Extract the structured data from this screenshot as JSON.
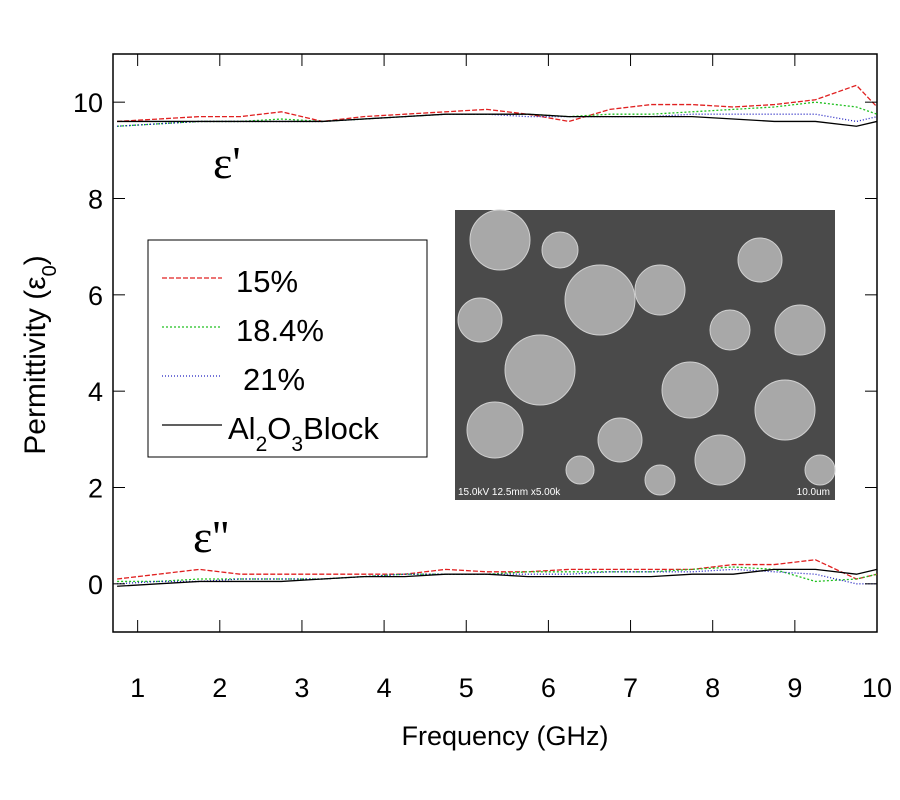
{
  "chart_data": {
    "type": "line",
    "x_label": "Frequency (GHz)",
    "y_label": {
      "main": "Permittivity (ε",
      "sub": "0",
      "end": ")"
    },
    "annotations": {
      "real": "ε'",
      "imag": "ε''"
    },
    "inset": {
      "caption": "15.0kV 12.5mm x5.00k",
      "scale": "10.0um"
    },
    "xlim": [
      0.7,
      10
    ],
    "xticks": [
      1,
      2,
      3,
      4,
      5,
      6,
      7,
      8,
      9,
      10
    ],
    "ylim": [
      -1,
      11
    ],
    "yticks": [
      0,
      2,
      4,
      6,
      8,
      10
    ],
    "x": [
      0.75,
      1.25,
      1.75,
      2.25,
      2.75,
      3.25,
      3.75,
      4.25,
      4.75,
      5.25,
      5.75,
      6.25,
      6.75,
      7.25,
      7.75,
      8.25,
      8.75,
      9.25,
      9.75,
      10
    ],
    "series": [
      {
        "name": "15%",
        "color": "#e02020",
        "dash": "5 2",
        "values": [
          9.6,
          9.65,
          9.7,
          9.7,
          9.8,
          9.6,
          9.7,
          9.75,
          9.8,
          9.85,
          9.75,
          9.6,
          9.85,
          9.95,
          9.95,
          9.9,
          9.95,
          10.05,
          10.35,
          9.9
        ],
        "loss_values": [
          0.1,
          0.2,
          0.3,
          0.2,
          0.2,
          0.2,
          0.2,
          0.2,
          0.3,
          0.25,
          0.25,
          0.3,
          0.3,
          0.3,
          0.3,
          0.4,
          0.4,
          0.5,
          0.1,
          0.2
        ]
      },
      {
        "name": "18.4%",
        "color": "#20c020",
        "dash": "2 2",
        "values": [
          9.5,
          9.55,
          9.6,
          9.6,
          9.65,
          9.6,
          9.65,
          9.7,
          9.75,
          9.75,
          9.75,
          9.7,
          9.75,
          9.75,
          9.8,
          9.85,
          9.9,
          10.0,
          9.9,
          9.75
        ],
        "loss_values": [
          0.05,
          0.05,
          0.1,
          0.1,
          0.1,
          0.1,
          0.15,
          0.2,
          0.2,
          0.2,
          0.25,
          0.25,
          0.25,
          0.25,
          0.3,
          0.35,
          0.3,
          0.05,
          0.1,
          0.2
        ]
      },
      {
        "name": "21%",
        "color": "#2020c0",
        "dash": "1 2",
        "values": [
          9.5,
          9.55,
          9.6,
          9.6,
          9.6,
          9.6,
          9.65,
          9.7,
          9.75,
          9.75,
          9.7,
          9.7,
          9.7,
          9.7,
          9.75,
          9.75,
          9.75,
          9.75,
          9.6,
          9.7
        ],
        "loss_values": [
          0.0,
          0.05,
          0.05,
          0.1,
          0.1,
          0.1,
          0.15,
          0.2,
          0.2,
          0.2,
          0.2,
          0.2,
          0.25,
          0.25,
          0.25,
          0.3,
          0.25,
          0.2,
          0.0,
          0.0
        ]
      },
      {
        "name": {
          "a": "Al",
          "b": "2",
          "c": "O",
          "d": "3",
          "e": "Block"
        },
        "color": "#000000",
        "dash": "none",
        "values": [
          9.6,
          9.6,
          9.6,
          9.6,
          9.6,
          9.6,
          9.65,
          9.7,
          9.75,
          9.75,
          9.75,
          9.7,
          9.7,
          9.7,
          9.7,
          9.65,
          9.6,
          9.6,
          9.5,
          9.6
        ],
        "loss_values": [
          -0.05,
          0.0,
          0.05,
          0.05,
          0.05,
          0.1,
          0.15,
          0.15,
          0.2,
          0.2,
          0.15,
          0.15,
          0.15,
          0.15,
          0.2,
          0.2,
          0.3,
          0.3,
          0.2,
          0.3
        ]
      }
    ]
  }
}
